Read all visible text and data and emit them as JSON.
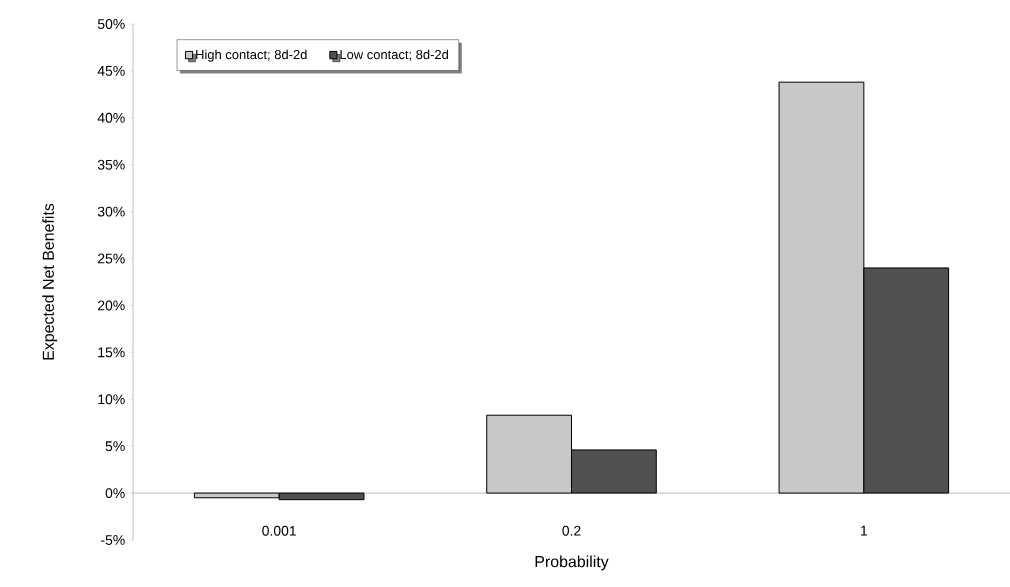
{
  "chart_data": {
    "type": "bar",
    "xlabel": "Probability",
    "ylabel": "Expected Net Benefits",
    "categories": [
      "0.001",
      "0.2",
      "1"
    ],
    "series": [
      {
        "name": "High contact; 8d-2d",
        "color": "#c8c8c8",
        "values": [
          -0.5,
          8.3,
          43.8
        ]
      },
      {
        "name": "Low contact; 8d-2d",
        "color": "#505050",
        "values": [
          -0.7,
          4.6,
          24.0
        ]
      }
    ],
    "ylim": [
      -5,
      50
    ],
    "yticks": [
      {
        "value": -5,
        "label": "-5%"
      },
      {
        "value": 0,
        "label": "0%"
      },
      {
        "value": 5,
        "label": "5%"
      },
      {
        "value": 10,
        "label": "10%"
      },
      {
        "value": 15,
        "label": "15%"
      },
      {
        "value": 20,
        "label": "20%"
      },
      {
        "value": 25,
        "label": "25%"
      },
      {
        "value": 30,
        "label": "30%"
      },
      {
        "value": 35,
        "label": "35%"
      },
      {
        "value": 40,
        "label": "40%"
      },
      {
        "value": 45,
        "label": "45%"
      },
      {
        "value": 50,
        "label": "50%"
      }
    ],
    "grid": false,
    "legend": "top left"
  }
}
